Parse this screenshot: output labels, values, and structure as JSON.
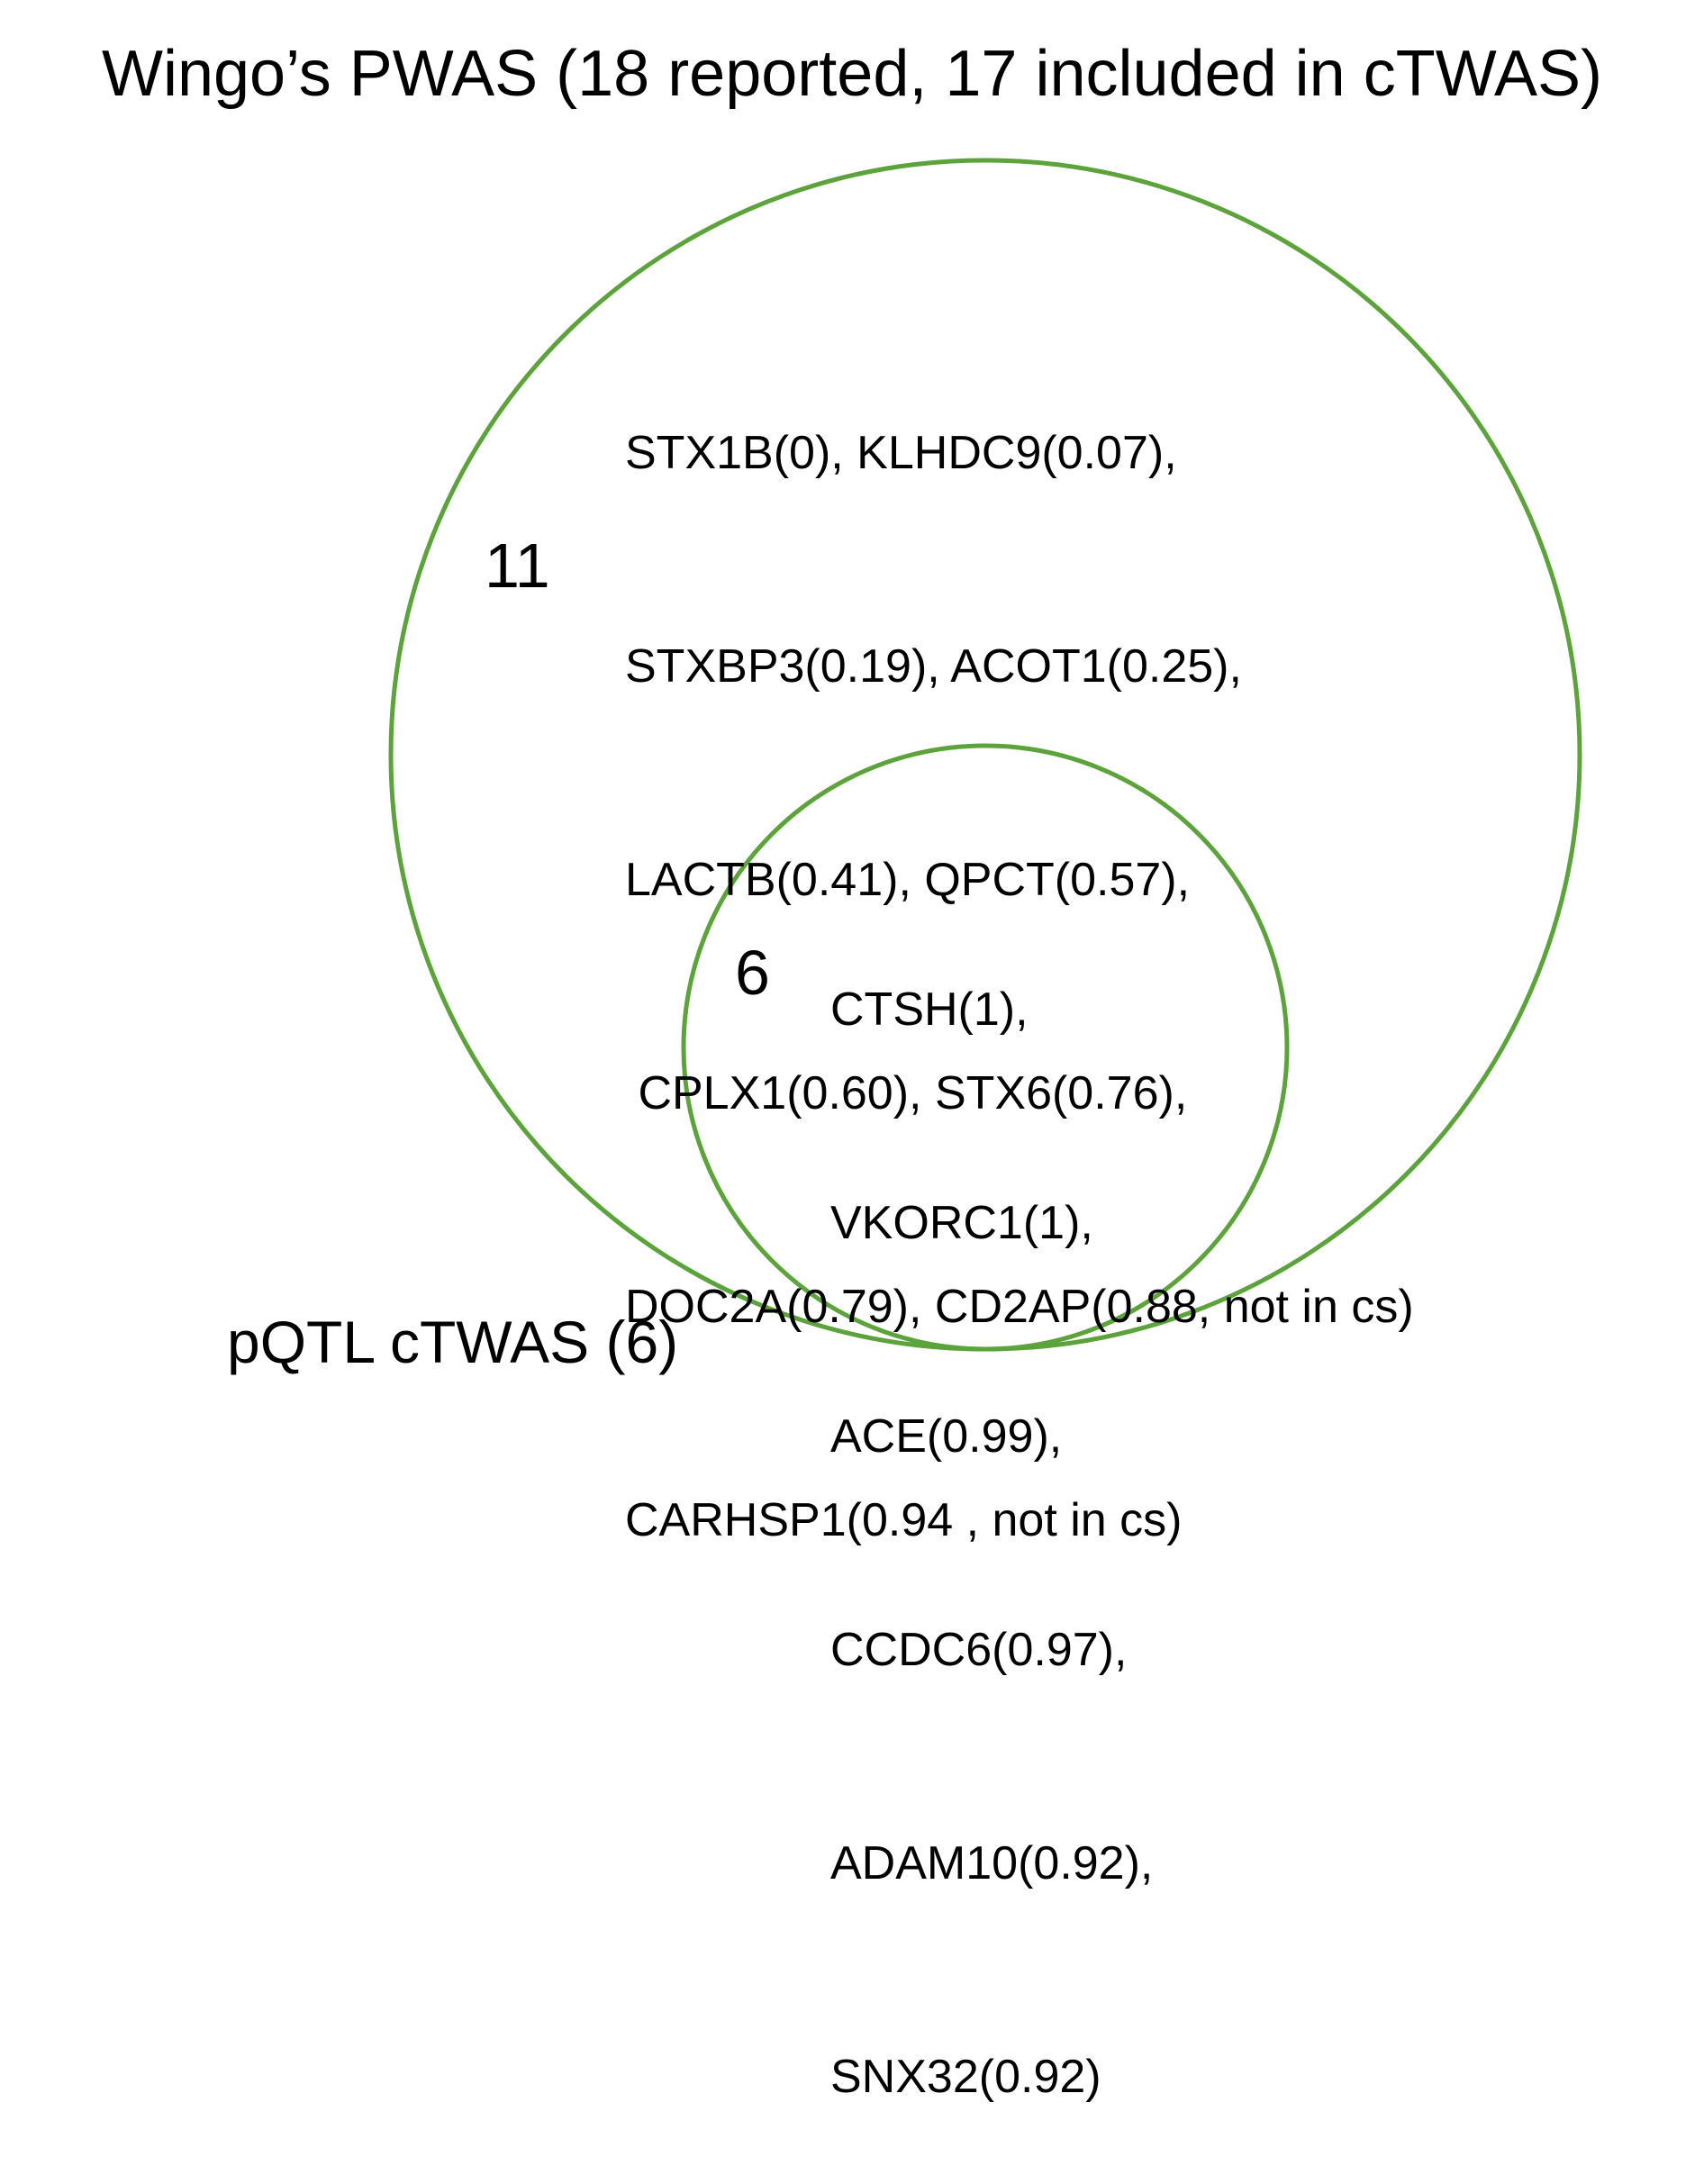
{
  "diagram": {
    "title": "Wingo’s PWAS (18 reported, 17 included in cTWAS)",
    "outer_set": {
      "count": "11",
      "genes": [
        "STX1B(0), KLHDC9(0.07),",
        "STXBP3(0.19), ACOT1(0.25),",
        "LACTB(0.41), QPCT(0.57),",
        " CPLX1(0.60), STX6(0.76),",
        "DOC2A(0.79), CD2AP(0.88, not in cs)",
        "CARHSP1(0.94 , not in cs)"
      ]
    },
    "inner_set": {
      "label": "pQTL cTWAS (6)",
      "count": "6",
      "genes": [
        "CTSH(1),",
        "VKORC1(1),",
        "ACE(0.99),",
        "CCDC6(0.97),",
        "ADAM10(0.92),",
        "SNX32(0.92)"
      ]
    },
    "colors": {
      "circle_stroke": "#5ba33a",
      "text": "#000000",
      "background": "#ffffff"
    }
  }
}
